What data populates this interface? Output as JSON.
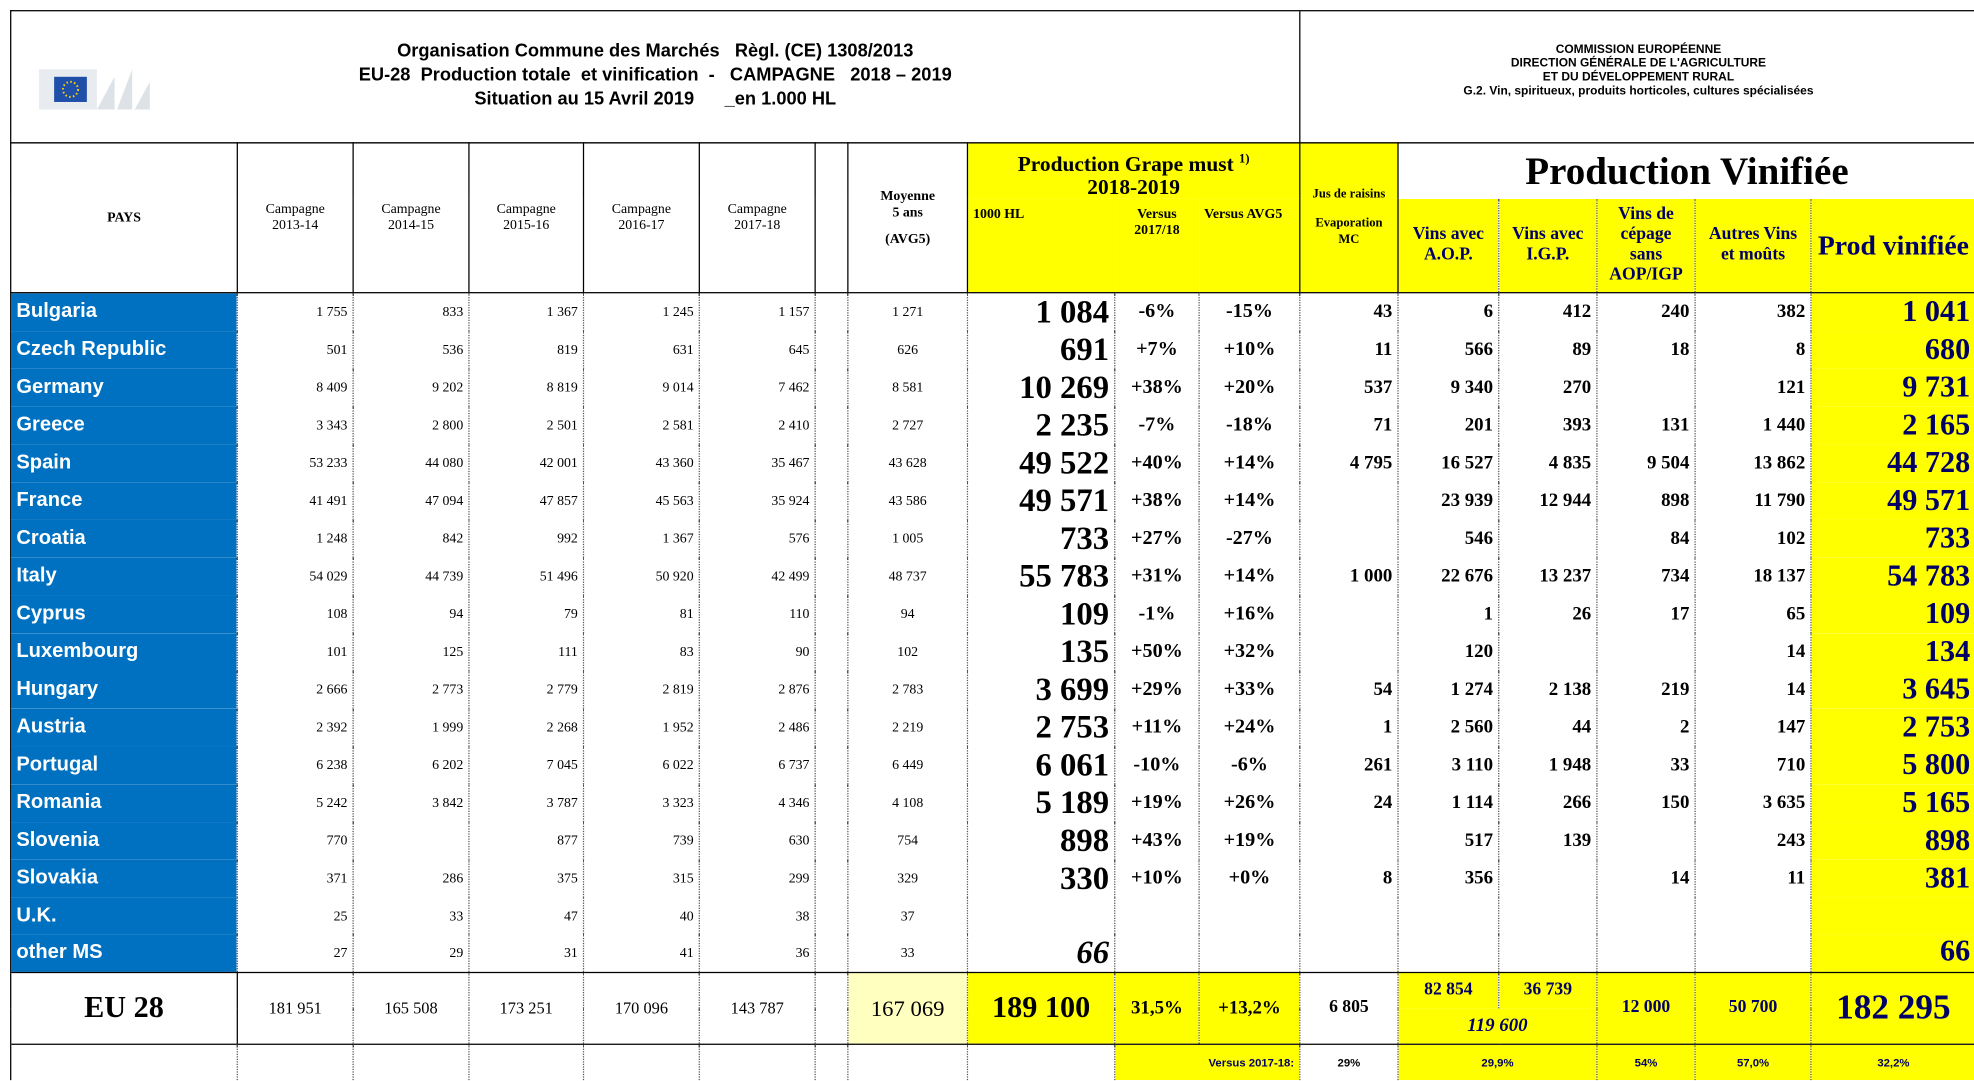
{
  "header": {
    "title_lines": [
      "Organisation Commune des Marchés   Règl. (CE) 1308/2013",
      "EU-28  Production totale  et vinification  -   CAMPAGNE   2018 – 2019",
      "Situation au 15 Avril 2019      _en 1.000 HL"
    ],
    "commission_lines": [
      "COMMISSION EUROPÉENNE",
      "DIRECTION GÉNÉRALE DE L'AGRICULTURE",
      "ET DU DÉVELOPPEMENT RURAL",
      "G.2. Vin, spiritueux, produits horticoles, cultures spécialisées"
    ]
  },
  "table": {
    "head": {
      "pays": "PAYS",
      "campaigns": [
        [
          "Campagne",
          "2013-14"
        ],
        [
          "Campagne",
          "2014-15"
        ],
        [
          "Campagne",
          "2015-16"
        ],
        [
          "Campagne",
          "2016-17"
        ],
        [
          "Campagne",
          "2017-18"
        ]
      ],
      "moyenne": [
        "Moyenne",
        "5 ans",
        "(AVG5)"
      ],
      "grape_title": "Production Grape must",
      "grape_note": "1)",
      "grape_year": "2018-2019",
      "grape_sub": [
        "1000 HL",
        "Versus 2017/18",
        "Versus AVG5"
      ],
      "jus": [
        "Jus de raisins",
        "Evaporation MC"
      ],
      "vin_title": "Production Vinifiée",
      "vin_sub": [
        "Vins avec A.O.P.",
        "Vins avec I.G.P.",
        "Vins de cépage sans AOP/IGP",
        "Autres Vins et moûts",
        "Prod vinifiée"
      ]
    },
    "rows": [
      {
        "country": "Bulgaria",
        "values": [
          "1 755",
          "833",
          "1 367",
          "1 245",
          "1 157",
          "1 271",
          "1 084",
          "-6%",
          "-15%",
          "43",
          "6",
          "412",
          "240",
          "382",
          "1 041"
        ]
      },
      {
        "country": "Czech Republic",
        "values": [
          "501",
          "536",
          "819",
          "631",
          "645",
          "626",
          "691",
          "+7%",
          "+10%",
          "11",
          "566",
          "89",
          "18",
          "8",
          "680"
        ]
      },
      {
        "country": "Germany",
        "values": [
          "8 409",
          "9 202",
          "8 819",
          "9 014",
          "7 462",
          "8 581",
          "10 269",
          "+38%",
          "+20%",
          "537",
          "9 340",
          "270",
          null,
          "121",
          "9 731"
        ]
      },
      {
        "country": "Greece",
        "values": [
          "3 343",
          "2 800",
          "2 501",
          "2 581",
          "2 410",
          "2 727",
          "2 235",
          "-7%",
          "-18%",
          "71",
          "201",
          "393",
          "131",
          "1 440",
          "2 165"
        ]
      },
      {
        "country": "Spain",
        "values": [
          "53 233",
          "44 080",
          "42 001",
          "43 360",
          "35 467",
          "43 628",
          "49 522",
          "+40%",
          "+14%",
          "4 795",
          "16 527",
          "4 835",
          "9 504",
          "13 862",
          "44 728"
        ]
      },
      {
        "country": "France",
        "values": [
          "41 491",
          "47 094",
          "47 857",
          "45 563",
          "35 924",
          "43 586",
          "49 571",
          "+38%",
          "+14%",
          null,
          "23 939",
          "12 944",
          "898",
          "11 790",
          "49 571"
        ]
      },
      {
        "country": "Croatia",
        "values": [
          "1 248",
          "842",
          "992",
          "1 367",
          "576",
          "1 005",
          "733",
          "+27%",
          "-27%",
          null,
          "546",
          null,
          "84",
          "102",
          "733"
        ]
      },
      {
        "country": "Italy",
        "values": [
          "54 029",
          "44 739",
          "51 496",
          "50 920",
          "42 499",
          "48 737",
          "55 783",
          "+31%",
          "+14%",
          "1 000",
          "22 676",
          "13 237",
          "734",
          "18 137",
          "54 783"
        ]
      },
      {
        "country": "Cyprus",
        "values": [
          "108",
          "94",
          "79",
          "81",
          "110",
          "94",
          "109",
          "-1%",
          "+16%",
          null,
          "1",
          "26",
          "17",
          "65",
          "109"
        ]
      },
      {
        "country": "Luxembourg",
        "values": [
          "101",
          "125",
          "111",
          "83",
          "90",
          "102",
          "135",
          "+50%",
          "+32%",
          null,
          "120",
          null,
          null,
          "14",
          "134"
        ]
      },
      {
        "country": "Hungary",
        "values": [
          "2 666",
          "2 773",
          "2 779",
          "2 819",
          "2 876",
          "2 783",
          "3 699",
          "+29%",
          "+33%",
          "54",
          "1 274",
          "2 138",
          "219",
          "14",
          "3 645"
        ]
      },
      {
        "country": "Austria",
        "values": [
          "2 392",
          "1 999",
          "2 268",
          "1 952",
          "2 486",
          "2 219",
          "2 753",
          "+11%",
          "+24%",
          "1",
          "2 560",
          "44",
          "2",
          "147",
          "2 753"
        ]
      },
      {
        "country": "Portugal",
        "values": [
          "6 238",
          "6 202",
          "7 045",
          "6 022",
          "6 737",
          "6 449",
          "6 061",
          "-10%",
          "-6%",
          "261",
          "3 110",
          "1 948",
          "33",
          "710",
          "5 800"
        ]
      },
      {
        "country": "Romania",
        "values": [
          "5 242",
          "3 842",
          "3 787",
          "3 323",
          "4 346",
          "4 108",
          "5 189",
          "+19%",
          "+26%",
          "24",
          "1 114",
          "266",
          "150",
          "3 635",
          "5 165"
        ]
      },
      {
        "country": "Slovenia",
        "values": [
          "770",
          null,
          "877",
          "739",
          "630",
          "754",
          "898",
          "+43%",
          "+19%",
          null,
          "517",
          "139",
          null,
          "243",
          "898"
        ]
      },
      {
        "country": "Slovakia",
        "values": [
          "371",
          "286",
          "375",
          "315",
          "299",
          "329",
          "330",
          "+10%",
          "+0%",
          "8",
          "356",
          null,
          "14",
          "11",
          "381"
        ]
      },
      {
        "country": "U.K.",
        "values": [
          "25",
          "33",
          "47",
          "40",
          "38",
          "37",
          null,
          null,
          null,
          null,
          null,
          null,
          null,
          null,
          null
        ]
      },
      {
        "country": "other MS",
        "values": [
          "27",
          "29",
          "31",
          "41",
          "36",
          "33",
          "66",
          null,
          null,
          null,
          null,
          null,
          null,
          null,
          "66"
        ]
      }
    ],
    "total": {
      "label": "EU 28",
      "values": [
        "181 951",
        "165 508",
        "173 251",
        "170 096",
        "143 787",
        "167 069",
        "189 100",
        "31,5%",
        "+13,2%",
        "6 805",
        "82 854",
        "36 739",
        "12 000",
        "50 700",
        "182 295"
      ],
      "vin_sum": "119 600"
    },
    "footer": {
      "label": "Versus 2017-18:",
      "jus": "29%",
      "aop_igp": "29,9%",
      "cep": "54%",
      "autres": "57,0%",
      "prod": "32,2%"
    }
  }
}
